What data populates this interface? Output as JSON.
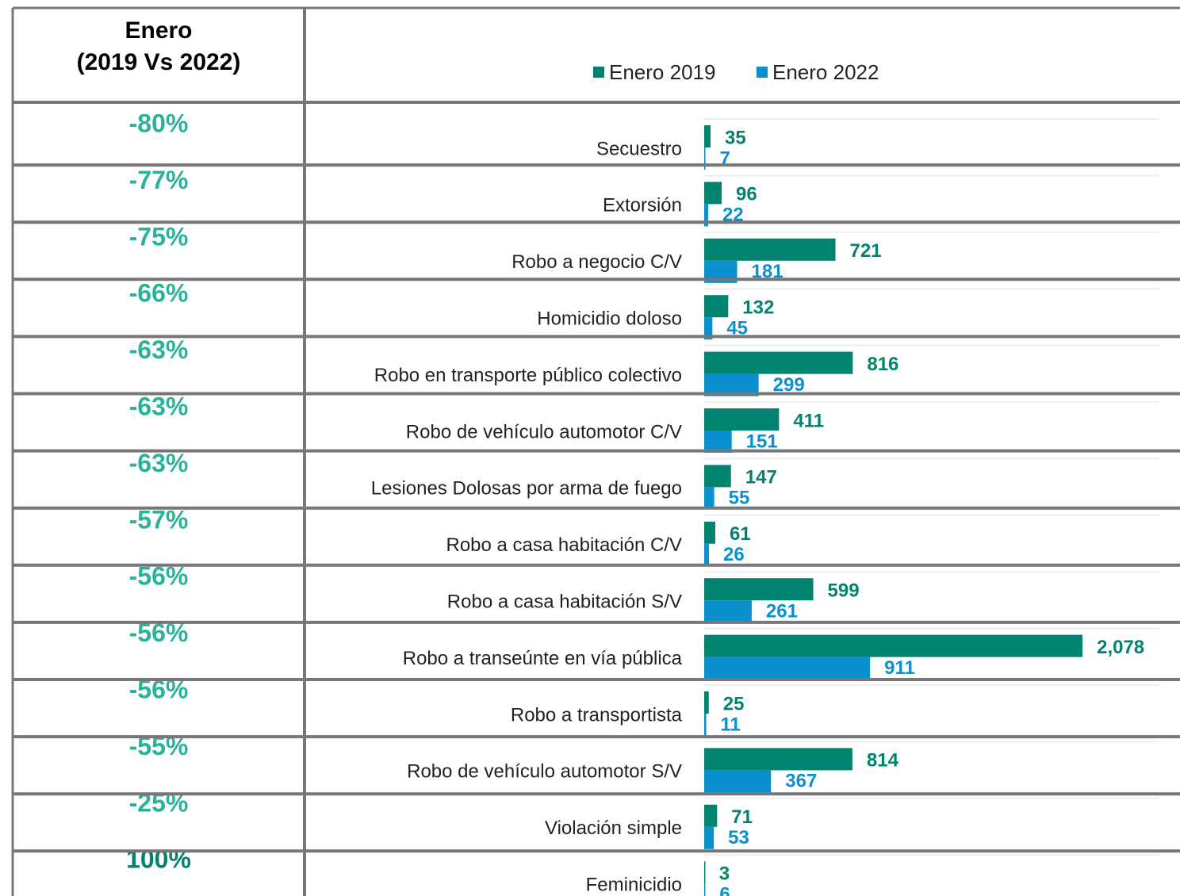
{
  "header": {
    "line1": "Enero",
    "line2": "(2019 Vs 2022)"
  },
  "changes": [
    "-80%",
    "-77%",
    "-75%",
    "-66%",
    "-63%",
    "-63%",
    "-63%",
    "-57%",
    "-56%",
    "-56%",
    "-56%",
    "-55%",
    "-25%",
    "100%"
  ],
  "chart_data": {
    "type": "barh",
    "categories": [
      "Secuestro",
      "Extorsión",
      "Robo a negocio C/V",
      "Homicidio doloso",
      "Robo en transporte público colectivo",
      "Robo de vehículo automotor C/V",
      "Lesiones Dolosas por arma de fuego",
      "Robo a casa habitación C/V",
      "Robo a casa habitación S/V",
      "Robo a transeúnte en vía pública",
      "Robo a transportista",
      "Robo de vehículo automotor S/V",
      "Violación simple",
      "Feminicidio"
    ],
    "series": [
      {
        "name": "Enero 2019",
        "color": "#00836f",
        "values": [
          35,
          96,
          721,
          132,
          816,
          411,
          147,
          61,
          599,
          2078,
          25,
          814,
          71,
          3
        ],
        "value_labels": [
          "35",
          "96",
          "721",
          "132",
          "816",
          "411",
          "147",
          "61",
          "599",
          "2,078",
          "25",
          "814",
          "71",
          "3"
        ]
      },
      {
        "name": "Enero 2022",
        "color": "#0a8fcf",
        "values": [
          7,
          22,
          181,
          45,
          299,
          151,
          55,
          26,
          261,
          911,
          11,
          367,
          53,
          6
        ]
      }
    ],
    "xlim": [
      0,
      2500
    ],
    "legend": "top"
  }
}
